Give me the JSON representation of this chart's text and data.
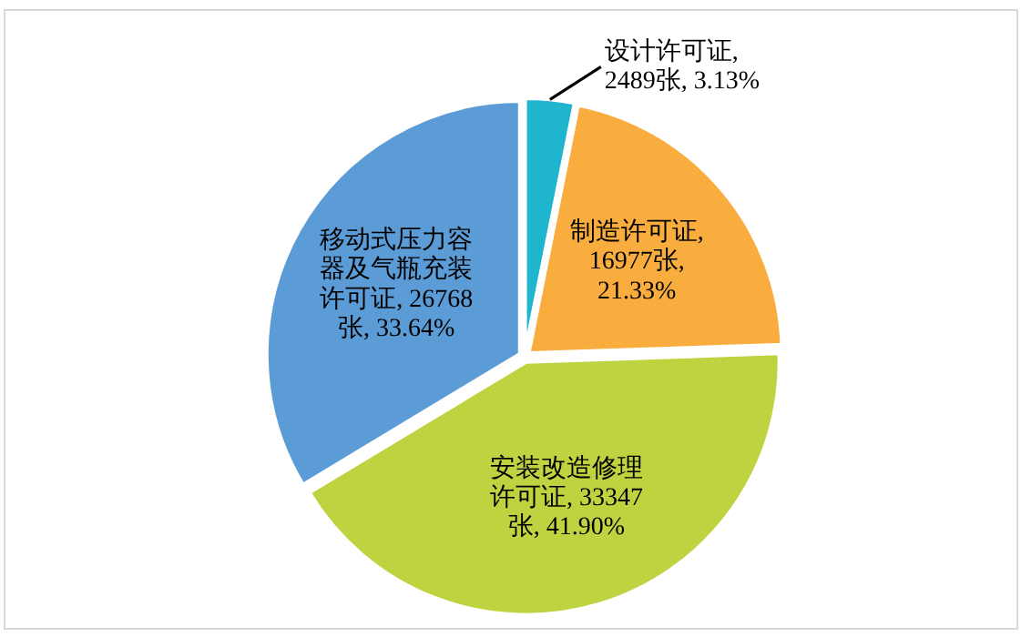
{
  "chart_data": {
    "type": "pie",
    "categories": [
      "设计许可证",
      "制造许可证",
      "安装改造修理许可证",
      "移动式压力容器及气瓶充装许可证"
    ],
    "values": [
      2489,
      16977,
      33347,
      26768
    ],
    "colors": [
      "#1fb5cf",
      "#f9ad3f",
      "#bfd23f",
      "#5b9bd6"
    ],
    "value_labels": [
      ", 2489张, 3.13%",
      ", 16977张, 21.33%",
      ", 33347张, 41.90%",
      ", 26768张, 33.64%"
    ]
  }
}
